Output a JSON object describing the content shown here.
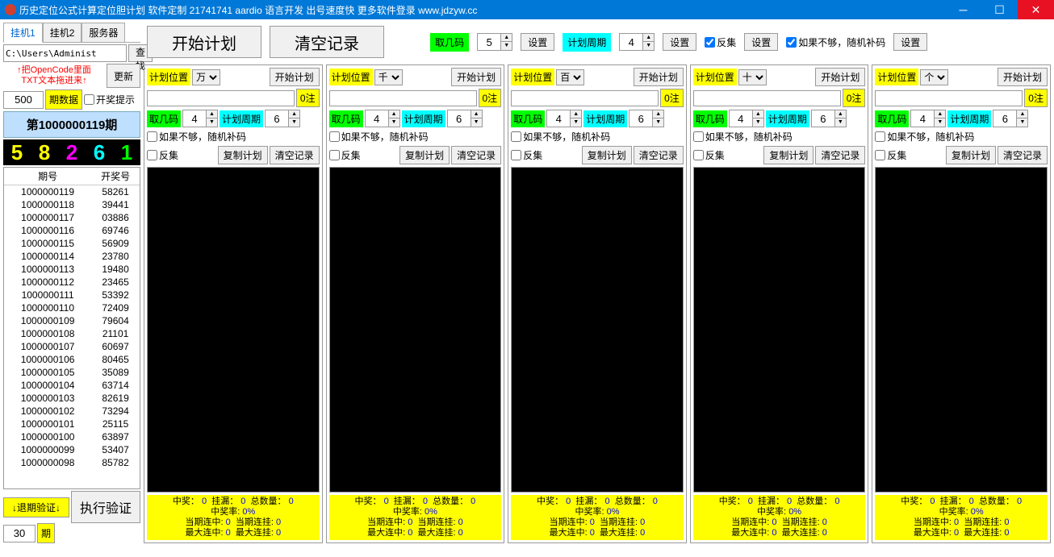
{
  "titlebar": {
    "text": "历史定位公式计算定位胆计划 软件定制 21741741 aardio 语言开发 出号速度快 更多软件登录 www.jdzyw.cc"
  },
  "tabs": [
    "挂机1",
    "挂机2",
    "服务器"
  ],
  "left": {
    "path": "C:\\Users\\Administ",
    "find_btn": "查找",
    "hint": "↑把OpenCode里面\nTXT文本拖进来↑",
    "update_btn": "更新",
    "period_input": "500",
    "period_label": "期数据",
    "draw_hint_label": "开奖提示",
    "current_period": "第1000000119期",
    "digits": [
      "5",
      "8",
      "2",
      "6",
      "1"
    ],
    "digit_colors": [
      "d-yellow",
      "d-yellow",
      "d-magenta",
      "d-cyan",
      "d-green"
    ],
    "history_headers": [
      "期号",
      "开奖号"
    ],
    "history": [
      [
        "1000000119",
        "58261"
      ],
      [
        "1000000118",
        "39441"
      ],
      [
        "1000000117",
        "03886"
      ],
      [
        "1000000116",
        "69746"
      ],
      [
        "1000000115",
        "56909"
      ],
      [
        "1000000114",
        "23780"
      ],
      [
        "1000000113",
        "19480"
      ],
      [
        "1000000112",
        "23465"
      ],
      [
        "1000000111",
        "53392"
      ],
      [
        "1000000110",
        "72409"
      ],
      [
        "1000000109",
        "79604"
      ],
      [
        "1000000108",
        "21101"
      ],
      [
        "1000000107",
        "60697"
      ],
      [
        "1000000106",
        "80465"
      ],
      [
        "1000000105",
        "35089"
      ],
      [
        "1000000104",
        "63714"
      ],
      [
        "1000000103",
        "82619"
      ],
      [
        "1000000102",
        "73294"
      ],
      [
        "1000000101",
        "25115"
      ],
      [
        "1000000100",
        "63897"
      ],
      [
        "1000000099",
        "53407"
      ],
      [
        "1000000098",
        "85782"
      ]
    ],
    "back_verify": "↓退期验证↓",
    "back_input": "30",
    "back_unit": "期",
    "exec_btn": "执行验证"
  },
  "top": {
    "start_plan": "开始计划",
    "clear_log": "清空记录",
    "pick_label": "取几码",
    "pick_val": "5",
    "set_btn": "设置",
    "cycle_label": "计划周期",
    "cycle_val": "4",
    "inverse_label": "反集",
    "random_label": "如果不够，随机补码"
  },
  "plan_positions": [
    "万",
    "千",
    "百",
    "十",
    "个"
  ],
  "plan": {
    "pos_label": "计划位置",
    "start_btn": "开始计划",
    "zero_note": "0注",
    "pick_label": "取几码",
    "pick_val": "4",
    "cycle_label": "计划周期",
    "cycle_val": "6",
    "random_label": "如果不够，随机补码",
    "inverse_label": "反集",
    "copy_btn": "复制计划",
    "clear_btn": "清空记录",
    "stats_l1": "中奖： 0  挂漏： 0  总数量： 0",
    "stats_l2": "中奖率: 0%",
    "stats_l3": "当期连中: 0  当期连挂: 0",
    "stats_l4": "最大连中: 0  最大连挂: 0"
  }
}
